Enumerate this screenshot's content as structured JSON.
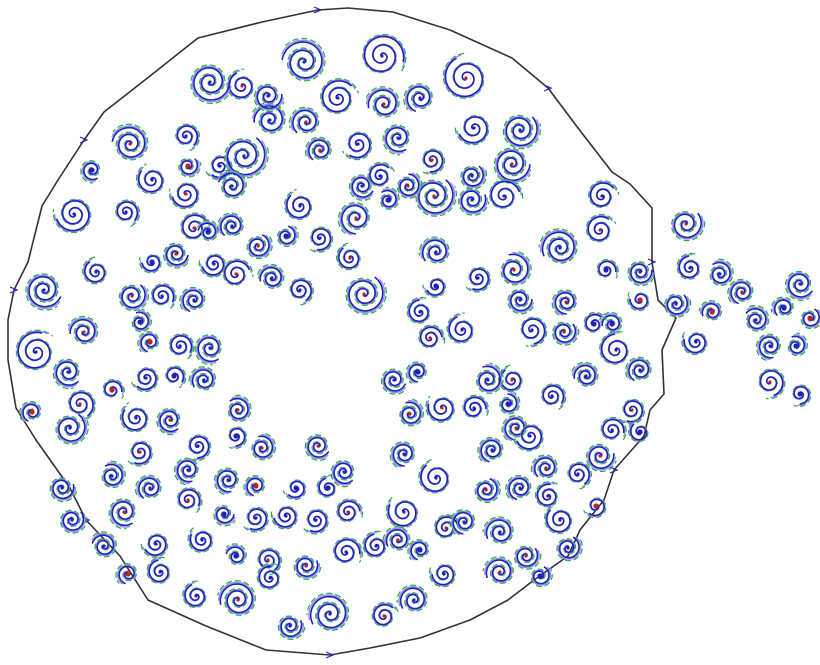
{
  "colors": {
    "background": "#ffffff",
    "boundary": "#303040",
    "spiral_dark": "#2020b8",
    "spiral_light": "#9090e8",
    "spiral_green": "#20b040",
    "spiral_red": "#c02020"
  },
  "diagram": {
    "description_visible_text": "",
    "shape_count_note": ""
  }
}
